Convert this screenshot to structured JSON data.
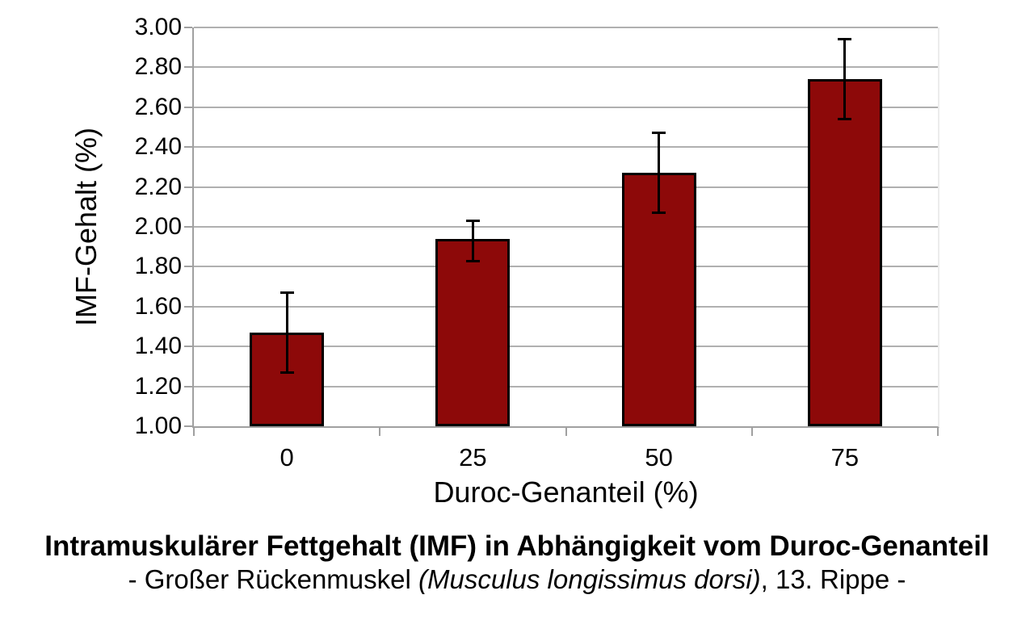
{
  "chart_data": {
    "type": "bar",
    "categories": [
      "0",
      "25",
      "50",
      "75"
    ],
    "series": [
      {
        "name": "IMF-Gehalt (%)",
        "values": [
          1.47,
          1.94,
          2.27,
          2.74
        ],
        "error_upper": [
          1.67,
          2.03,
          2.47,
          2.94
        ],
        "error_lower": [
          1.27,
          1.83,
          2.07,
          2.54
        ]
      }
    ],
    "xlabel": "Duroc-Genanteil (%)",
    "ylabel": "IMF-Gehalt (%)",
    "ylim": [
      1.0,
      3.0
    ],
    "ytick_step": 0.2,
    "ytick_labels": [
      "1.00",
      "1.20",
      "1.40",
      "1.60",
      "1.80",
      "2.00",
      "2.20",
      "2.40",
      "2.60",
      "2.80",
      "3.00"
    ],
    "grid": true,
    "legend": false,
    "colors": {
      "bar_fill": "#8d0909",
      "bar_border": "#000000",
      "error_bar": "#000000",
      "gridline": "#b0b0b0",
      "axis": "#a0a0a0",
      "plot_right_edge": "#ececec",
      "text": "#000000"
    }
  },
  "caption": {
    "line1": "Intramuskulärer Fettgehalt (IMF) in Abhängigkeit vom Duroc-Genanteil",
    "line2_prefix": "- Großer Rückenmuskel ",
    "line2_italic": "(Musculus longissimus dorsi)",
    "line2_suffix": ", 13. Rippe -"
  }
}
